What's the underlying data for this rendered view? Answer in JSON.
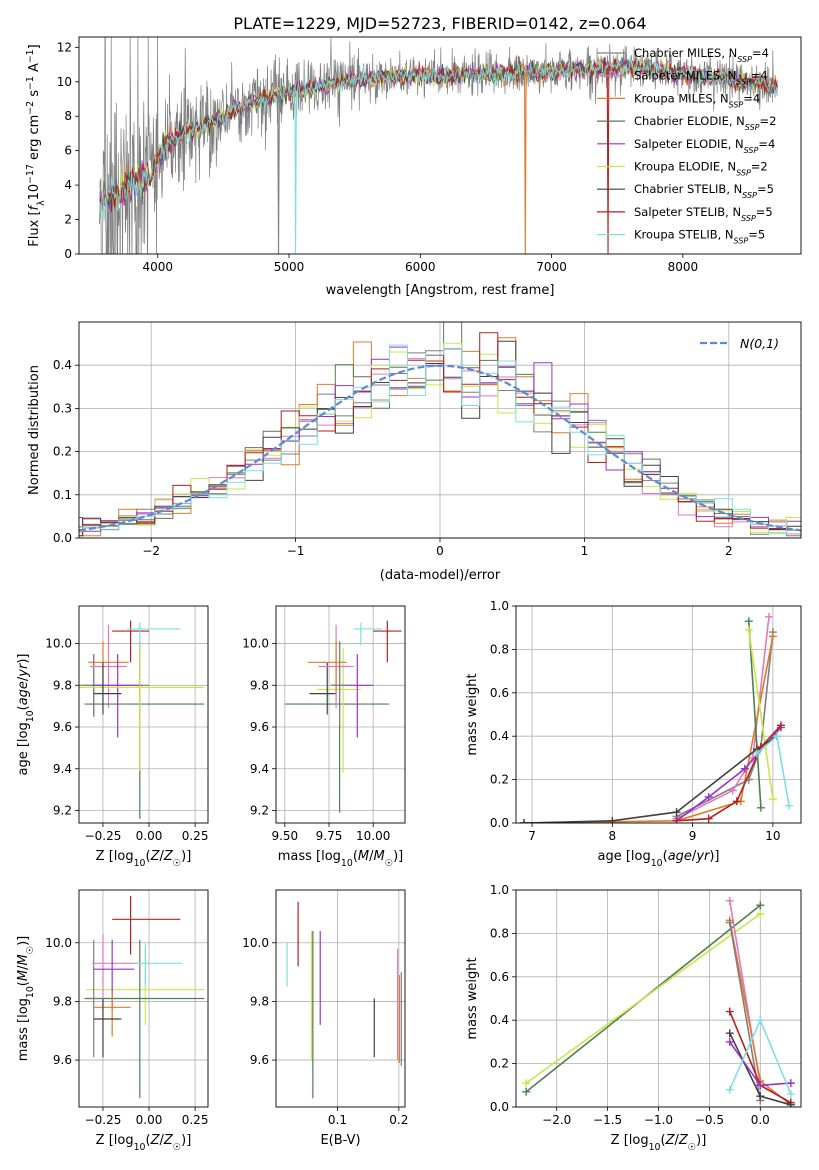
{
  "figure": {
    "title": "PLATE=1229, MJD=52723, FIBERID=0142, z=0.064"
  },
  "series": [
    {
      "name": "Chabrier MILES, N_SSP=4",
      "label_main": "Chabrier MILES, N",
      "label_sub": "SSP",
      "label_tail": "=4",
      "color": "#7f7f7f"
    },
    {
      "name": "Salpeter MILES, N_SSP=4",
      "label_main": "Salpeter MILES, N",
      "label_sub": "SSP",
      "label_tail": "=4",
      "color": "#e377c2"
    },
    {
      "name": "Kroupa MILES, N_SSP=4",
      "label_main": "Kroupa MILES, N",
      "label_sub": "SSP",
      "label_tail": "=4",
      "color": "#e07b2a"
    },
    {
      "name": "Chabrier ELODIE, N_SSP=2",
      "label_main": "Chabrier ELODIE, N",
      "label_sub": "SSP",
      "label_tail": "=2",
      "color": "#4f7f4f"
    },
    {
      "name": "Salpeter ELODIE, N_SSP=4",
      "label_main": "Salpeter ELODIE, N",
      "label_sub": "SSP",
      "label_tail": "=4",
      "color": "#9932cc"
    },
    {
      "name": "Kroupa ELODIE, N_SSP=2",
      "label_main": "Kroupa ELODIE, N",
      "label_sub": "SSP",
      "label_tail": "=2",
      "color": "#c8e64c"
    },
    {
      "name": "Chabrier STELIB, N_SSP=5",
      "label_main": "Chabrier STELIB, N",
      "label_sub": "SSP",
      "label_tail": "=5",
      "color": "#404040"
    },
    {
      "name": "Salpeter STELIB, N_SSP=5",
      "label_main": "Salpeter STELIB, N",
      "label_sub": "SSP",
      "label_tail": "=5",
      "color": "#b22222"
    },
    {
      "name": "Kroupa STELIB, N_SSP=5",
      "label_main": "Kroupa STELIB, N",
      "label_sub": "SSP",
      "label_tail": "=5",
      "color": "#7fdfdf"
    }
  ],
  "chart_data": [
    {
      "id": "spectrum",
      "type": "line",
      "xlabel": "wavelength [Angstrom, rest frame]",
      "ylabel": "Flux [f_λ10^-17 erg cm^-2 s^-1 A^-1]",
      "xlim": [
        3400,
        8900
      ],
      "ylim": [
        0,
        12.6
      ],
      "xticks": [
        4000,
        5000,
        6000,
        7000,
        8000
      ],
      "yticks": [
        0,
        2,
        4,
        6,
        8,
        10,
        12
      ],
      "grid": false,
      "legend": "right",
      "continuum": [
        [
          3550,
          3.0
        ],
        [
          3700,
          3.6
        ],
        [
          3850,
          4.2
        ],
        [
          3950,
          4.5
        ],
        [
          4050,
          6.4
        ],
        [
          4200,
          7.0
        ],
        [
          4400,
          7.6
        ],
        [
          4600,
          8.4
        ],
        [
          4800,
          9.0
        ],
        [
          5000,
          9.4
        ],
        [
          5200,
          9.7
        ],
        [
          5500,
          10.1
        ],
        [
          5800,
          10.3
        ],
        [
          6100,
          10.3
        ],
        [
          6400,
          10.4
        ],
        [
          6700,
          10.5
        ],
        [
          7000,
          10.6
        ],
        [
          7300,
          10.7
        ],
        [
          7600,
          10.9
        ],
        [
          7900,
          10.6
        ],
        [
          8200,
          10.3
        ],
        [
          8500,
          10.0
        ],
        [
          8700,
          9.7
        ]
      ],
      "dropouts": [
        [
          5050,
          "#7fdfdf"
        ],
        [
          6800,
          "#e07b2a"
        ],
        [
          7430,
          "#b22222"
        ],
        [
          4920,
          "#7f7f7f"
        ]
      ]
    },
    {
      "id": "residual_hist",
      "type": "histogram",
      "xlabel": "(data-model)/error",
      "ylabel": "Normed distribution",
      "xlim": [
        -2.5,
        2.5
      ],
      "ylim": [
        0,
        0.5
      ],
      "xticks": [
        -2,
        -1,
        0,
        1,
        2
      ],
      "yticks": [
        0.0,
        0.1,
        0.2,
        0.3,
        0.4
      ],
      "grid": true,
      "legend": "top-right",
      "curve_label": "N(0,1)",
      "curve_color": "#5b8bd6",
      "bin_width": 0.125
    },
    {
      "id": "age_vs_Z",
      "type": "errorbar",
      "xlabel": "Z [log10(Z/Z☉)]",
      "ylabel": "age [log10(age/yr)]",
      "xlim": [
        -0.38,
        0.32
      ],
      "ylim": [
        9.14,
        10.18
      ],
      "xticks": [
        -0.25,
        0.0,
        0.25
      ],
      "yticks": [
        9.2,
        9.4,
        9.6,
        9.8,
        10.0
      ],
      "grid": true,
      "points": [
        {
          "x": -0.3,
          "y": 9.8,
          "xerr": [
            0.6,
            0.3
          ],
          "yerr": [
            0.15,
            0.15
          ],
          "s": 0
        },
        {
          "x": -0.3,
          "y": 9.8,
          "xerr": [
            0.05,
            0.05
          ],
          "yerr": [
            0.15,
            0.15
          ],
          "s": 0
        },
        {
          "x": -0.22,
          "y": 9.89,
          "xerr": [
            0.1,
            0.1
          ],
          "yerr": [
            0.2,
            0.2
          ],
          "s": 1
        },
        {
          "x": -0.25,
          "y": 9.91,
          "xerr": [
            0.08,
            0.14
          ],
          "yerr": [
            0.15,
            0.1
          ],
          "s": 2
        },
        {
          "x": -0.05,
          "y": 9.71,
          "xerr": [
            0.3,
            0.35
          ],
          "yerr": [
            0.55,
            0.3
          ],
          "s": 3
        },
        {
          "x": -0.17,
          "y": 9.8,
          "xerr": [
            0.14,
            0.13
          ],
          "yerr": [
            0.25,
            0.15
          ],
          "s": 4
        },
        {
          "x": -0.05,
          "y": 9.79,
          "xerr": [
            0.35,
            0.35
          ],
          "yerr": [
            0.4,
            0.2
          ],
          "s": 5
        },
        {
          "x": -0.25,
          "y": 9.76,
          "xerr": [
            0.05,
            0.1
          ],
          "yerr": [
            0.1,
            0.15
          ],
          "s": 6
        },
        {
          "x": -0.1,
          "y": 10.06,
          "xerr": [
            0.1,
            0.1
          ],
          "yerr": [
            0.15,
            0.05
          ],
          "s": 7
        },
        {
          "x": -0.05,
          "y": 10.07,
          "xerr": [
            0.07,
            0.22
          ],
          "yerr": [
            0.08,
            0.03
          ],
          "s": 8
        }
      ]
    },
    {
      "id": "age_vs_mass",
      "type": "errorbar",
      "xlabel": "mass [log10(M/M☉)]",
      "ylabel": "",
      "xlim": [
        9.45,
        10.18
      ],
      "ylim": [
        9.14,
        10.18
      ],
      "xticks": [
        9.5,
        9.75,
        10.0
      ],
      "yticks": [
        9.2,
        9.4,
        9.6,
        9.8,
        10.0
      ],
      "grid": true,
      "points": [
        {
          "x": 9.81,
          "y": 9.71,
          "xerr": [
            0.31,
            0.28
          ],
          "yerr": [
            0.52,
            0.3
          ],
          "s": 3
        },
        {
          "x": 9.83,
          "y": 9.78,
          "xerr": [
            0.15,
            0.1
          ],
          "yerr": [
            0.4,
            0.2
          ],
          "s": 5
        },
        {
          "x": 9.91,
          "y": 9.8,
          "xerr": [
            0.14,
            0.09
          ],
          "yerr": [
            0.25,
            0.15
          ],
          "s": 4
        },
        {
          "x": 9.74,
          "y": 9.76,
          "xerr": [
            0.1,
            0.05
          ],
          "yerr": [
            0.1,
            0.15
          ],
          "s": 6
        },
        {
          "x": 9.79,
          "y": 9.89,
          "xerr": [
            0.1,
            0.1
          ],
          "yerr": [
            0.2,
            0.2
          ],
          "s": 1
        },
        {
          "x": 9.79,
          "y": 9.91,
          "xerr": [
            0.16,
            0.06
          ],
          "yerr": [
            0.15,
            0.1
          ],
          "s": 2
        },
        {
          "x": 9.81,
          "y": 9.8,
          "xerr": [
            0.05,
            0.05
          ],
          "yerr": [
            0.2,
            0.2
          ],
          "s": 0
        },
        {
          "x": 10.08,
          "y": 10.06,
          "xerr": [
            0.08,
            0.08
          ],
          "yerr": [
            0.15,
            0.05
          ],
          "s": 7
        },
        {
          "x": 9.93,
          "y": 10.07,
          "xerr": [
            0.04,
            0.12
          ],
          "yerr": [
            0.08,
            0.03
          ],
          "s": 8
        }
      ]
    },
    {
      "id": "mass_weight_vs_age",
      "type": "line",
      "xlabel": "age [log10(age/yr)]",
      "ylabel": "mass weight",
      "xlim": [
        6.8,
        10.35
      ],
      "ylim": [
        0,
        1.0
      ],
      "xticks": [
        7,
        8,
        9,
        10
      ],
      "yticks": [
        0.0,
        0.2,
        0.4,
        0.6,
        0.8,
        1.0
      ],
      "grid": true,
      "lines": [
        {
          "s": 0,
          "x": [
            8.8,
            9.7,
            9.85,
            10.0
          ],
          "y": [
            0.03,
            0.2,
            0.35,
            0.88
          ]
        },
        {
          "s": 1,
          "x": [
            8.8,
            9.5,
            9.75,
            9.95
          ],
          "y": [
            0.02,
            0.15,
            0.3,
            0.95
          ]
        },
        {
          "s": 2,
          "x": [
            6.9,
            8.8,
            9.6,
            10.0
          ],
          "y": [
            0.0,
            0.01,
            0.1,
            0.86
          ]
        },
        {
          "s": 3,
          "x": [
            9.7,
            9.85
          ],
          "y": [
            0.93,
            0.07
          ]
        },
        {
          "s": 4,
          "x": [
            8.8,
            9.2,
            9.65,
            10.1
          ],
          "y": [
            0.01,
            0.12,
            0.25,
            0.44
          ]
        },
        {
          "s": 5,
          "x": [
            9.7,
            10.0
          ],
          "y": [
            0.89,
            0.11
          ]
        },
        {
          "s": 6,
          "x": [
            6.9,
            8.0,
            8.8,
            9.8,
            10.05
          ],
          "y": [
            0.0,
            0.01,
            0.05,
            0.34,
            0.4
          ]
        },
        {
          "s": 7,
          "x": [
            8.8,
            9.2,
            9.55,
            9.85,
            10.1
          ],
          "y": [
            0.01,
            0.02,
            0.1,
            0.35,
            0.45
          ]
        },
        {
          "s": 8,
          "x": [
            9.8,
            10.05,
            10.2
          ],
          "y": [
            0.32,
            0.4,
            0.08
          ]
        }
      ]
    },
    {
      "id": "mass_vs_Z",
      "type": "errorbar",
      "xlabel": "Z [log10(Z/Z☉)]",
      "ylabel": "mass [log10(M/M☉)]",
      "xlim": [
        -0.38,
        0.32
      ],
      "ylim": [
        9.44,
        10.18
      ],
      "xticks": [
        -0.25,
        0.0,
        0.25
      ],
      "yticks": [
        9.6,
        9.8,
        10.0
      ],
      "grid": true,
      "points": [
        {
          "x": -0.02,
          "y": 9.84,
          "xerr": [
            0.32,
            0.32
          ],
          "yerr": [
            0.12,
            0.16
          ],
          "s": 5
        },
        {
          "x": -0.05,
          "y": 9.81,
          "xerr": [
            0.3,
            0.35
          ],
          "yerr": [
            0.34,
            0.2
          ],
          "s": 3
        },
        {
          "x": -0.3,
          "y": 9.81,
          "xerr": [
            0.03,
            0.03
          ],
          "yerr": [
            0.2,
            0.2
          ],
          "s": 0
        },
        {
          "x": -0.25,
          "y": 9.93,
          "xerr": [
            0.06,
            0.2
          ],
          "yerr": [
            0.16,
            0.1
          ],
          "s": 1
        },
        {
          "x": -0.2,
          "y": 9.91,
          "xerr": [
            0.1,
            0.12
          ],
          "yerr": [
            0.14,
            0.1
          ],
          "s": 4
        },
        {
          "x": -0.2,
          "y": 9.78,
          "xerr": [
            0.1,
            0.1
          ],
          "yerr": [
            0.1,
            0.05
          ],
          "s": 2
        },
        {
          "x": -0.25,
          "y": 9.74,
          "xerr": [
            0.05,
            0.1
          ],
          "yerr": [
            0.13,
            0.07
          ],
          "s": 6
        },
        {
          "x": -0.1,
          "y": 10.08,
          "xerr": [
            0.1,
            0.27
          ],
          "yerr": [
            0.12,
            0.08
          ],
          "s": 7
        },
        {
          "x": -0.02,
          "y": 9.93,
          "xerr": [
            0.06,
            0.2
          ],
          "yerr": [
            0.08,
            0.06
          ],
          "s": 8
        }
      ]
    },
    {
      "id": "mass_vs_ebv",
      "type": "errorbar",
      "xlabel": "E(B-V)",
      "ylabel": "",
      "xlim": [
        0.0,
        0.21
      ],
      "ylim": [
        9.44,
        10.18
      ],
      "xticks": [
        0.1,
        0.2
      ],
      "yticks": [
        9.6,
        9.8,
        10.0
      ],
      "grid": true,
      "points": [
        {
          "x": 0.036,
          "y": 10.08,
          "xerr": [
            0,
            0
          ],
          "yerr": [
            0.16,
            0.06
          ],
          "s": 7
        },
        {
          "x": 0.018,
          "y": 9.93,
          "xerr": [
            0,
            0
          ],
          "yerr": [
            0.08,
            0.07
          ],
          "s": 8
        },
        {
          "x": 0.058,
          "y": 9.82,
          "xerr": [
            0,
            0
          ],
          "yerr": [
            0.22,
            0.22
          ],
          "s": 5
        },
        {
          "x": 0.06,
          "y": 9.75,
          "xerr": [
            0,
            0
          ],
          "yerr": [
            0.28,
            0.29
          ],
          "s": 3
        },
        {
          "x": 0.072,
          "y": 9.88,
          "xerr": [
            0,
            0
          ],
          "yerr": [
            0.16,
            0.16
          ],
          "s": 4
        },
        {
          "x": 0.16,
          "y": 9.71,
          "xerr": [
            0,
            0
          ],
          "yerr": [
            0.1,
            0.1
          ],
          "s": 6
        },
        {
          "x": 0.198,
          "y": 9.79,
          "xerr": [
            0,
            0
          ],
          "yerr": [
            0.19,
            0.19
          ],
          "s": 1
        },
        {
          "x": 0.201,
          "y": 9.74,
          "xerr": [
            0,
            0
          ],
          "yerr": [
            0.15,
            0.15
          ],
          "s": 2
        },
        {
          "x": 0.204,
          "y": 9.74,
          "xerr": [
            0,
            0
          ],
          "yerr": [
            0.16,
            0.16
          ],
          "s": 0
        }
      ]
    },
    {
      "id": "mass_weight_vs_Z",
      "type": "line",
      "xlabel": "Z [log10(Z/Z☉)]",
      "ylabel": "mass weight",
      "xlim": [
        -2.4,
        0.4
      ],
      "ylim": [
        0,
        1.0
      ],
      "xticks": [
        -2.0,
        -1.5,
        -1.0,
        -0.5,
        0.0
      ],
      "yticks": [
        0.0,
        0.2,
        0.4,
        0.6,
        0.8,
        1.0
      ],
      "grid": true,
      "lines": [
        {
          "s": 3,
          "x": [
            -2.3,
            0.0
          ],
          "y": [
            0.07,
            0.93
          ]
        },
        {
          "s": 5,
          "x": [
            -2.3,
            0.0
          ],
          "y": [
            0.11,
            0.89
          ]
        },
        {
          "s": 1,
          "x": [
            -0.3,
            0.0,
            0.3
          ],
          "y": [
            0.95,
            0.1,
            0.02
          ]
        },
        {
          "s": 2,
          "x": [
            -0.3,
            0.0,
            0.3
          ],
          "y": [
            0.86,
            0.12,
            0.01
          ]
        },
        {
          "s": 0,
          "x": [
            -0.3,
            0.0
          ],
          "y": [
            0.85,
            0.03
          ]
        },
        {
          "s": 7,
          "x": [
            -0.3,
            0.0,
            0.3
          ],
          "y": [
            0.44,
            0.1,
            0.02
          ]
        },
        {
          "s": 6,
          "x": [
            -0.3,
            0.0,
            0.3
          ],
          "y": [
            0.34,
            0.05,
            0.01
          ]
        },
        {
          "s": 4,
          "x": [
            -0.3,
            0.0,
            0.3
          ],
          "y": [
            0.3,
            0.1,
            0.11
          ]
        },
        {
          "s": 8,
          "x": [
            -0.3,
            0.0,
            0.3
          ],
          "y": [
            0.08,
            0.4,
            0.06
          ]
        }
      ]
    }
  ]
}
